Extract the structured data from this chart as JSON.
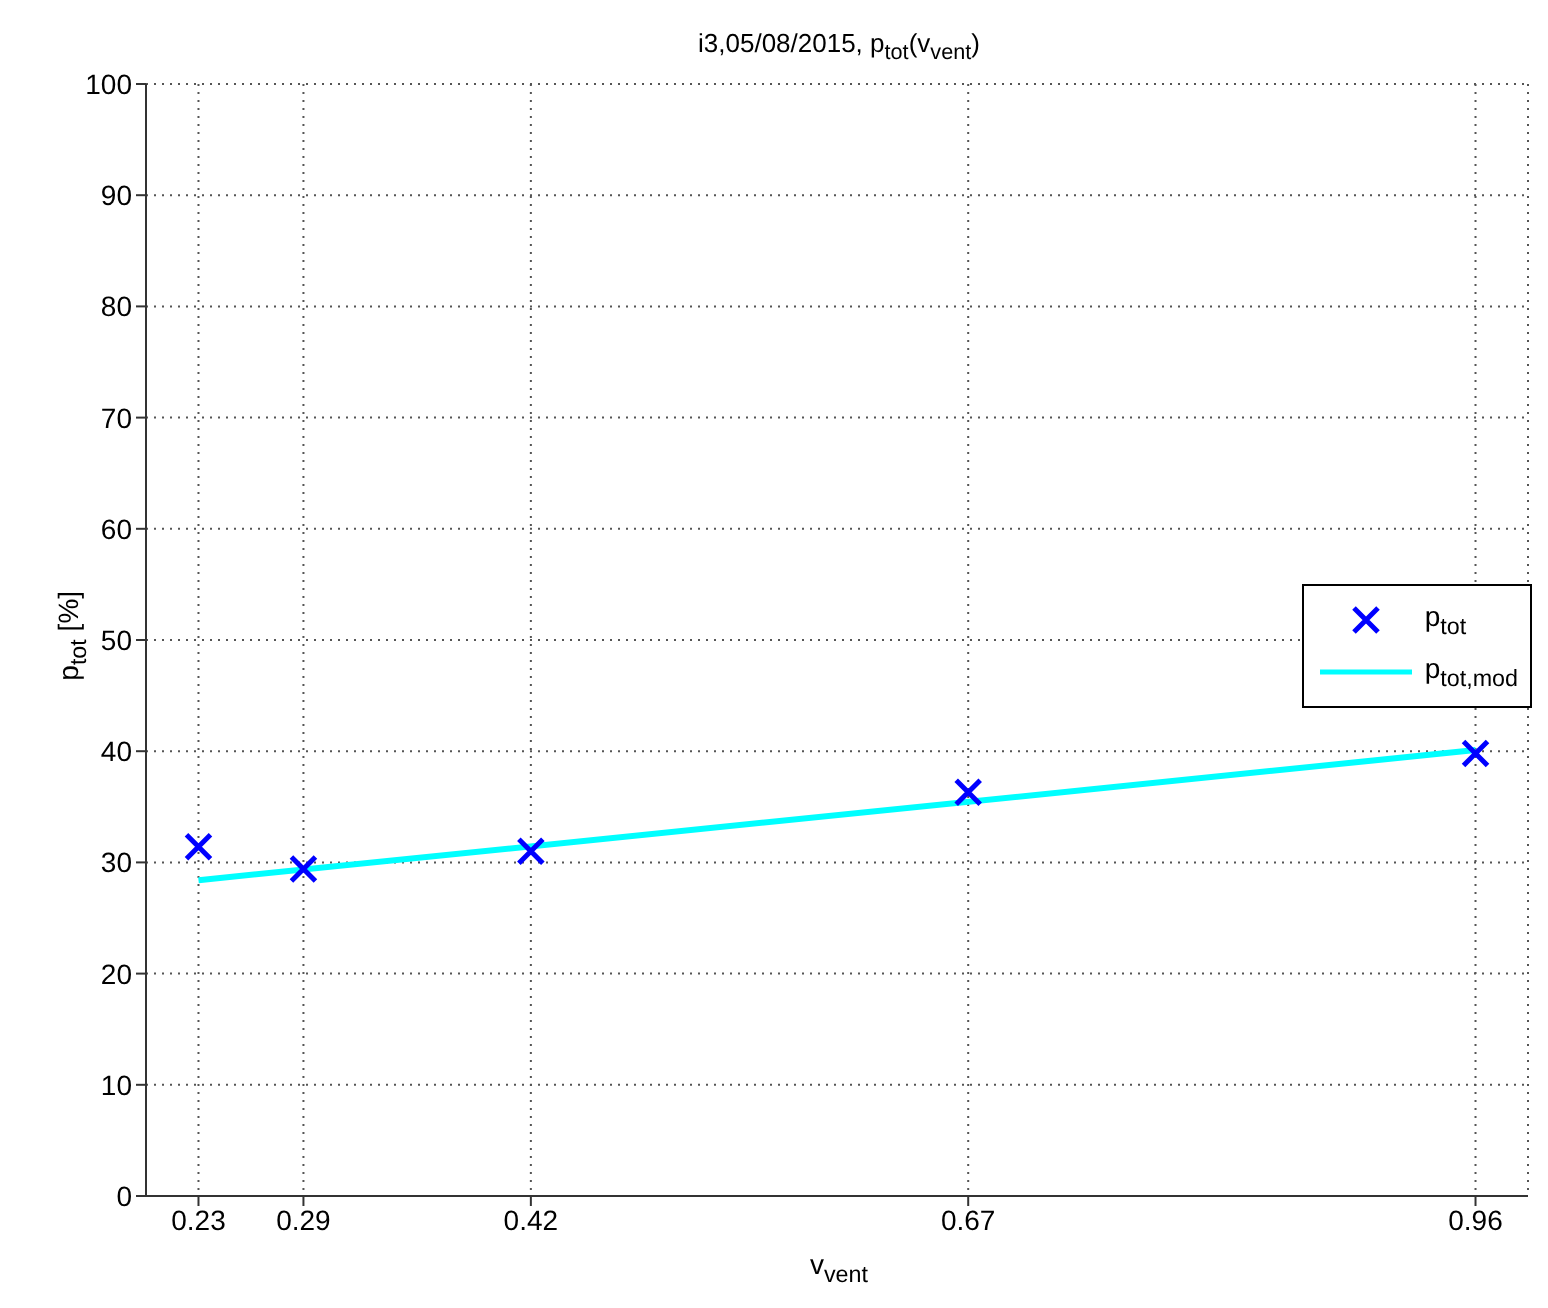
{
  "chart_data": {
    "type": "scatter",
    "title": "i3,05/08/2015, p$_{tot}$(v$_{vent}$)",
    "xlabel": "v$_{vent}$",
    "ylabel": "p$_{tot}$ [%]",
    "xlim": [
      0.2,
      0.99
    ],
    "xticks": [
      0.23,
      0.29,
      0.42,
      0.67,
      0.96
    ],
    "ylim": [
      0,
      100
    ],
    "yticks": [
      0,
      10,
      20,
      30,
      40,
      50,
      60,
      70,
      80,
      90,
      100
    ],
    "grid": true,
    "legend": "right",
    "series": [
      {
        "name": "p$_{tot}$",
        "marker": "cross",
        "color": "#0000ff",
        "x": [
          0.23,
          0.29,
          0.42,
          0.67,
          0.96
        ],
        "values": [
          31.4,
          29.4,
          31.0,
          36.3,
          39.8
        ]
      },
      {
        "name": "p$_{tot,mod}$",
        "type": "line",
        "marker": "none",
        "color": "#00ffff",
        "x": [
          0.23,
          0.96
        ],
        "values": [
          28.4,
          40.1
        ]
      }
    ]
  }
}
